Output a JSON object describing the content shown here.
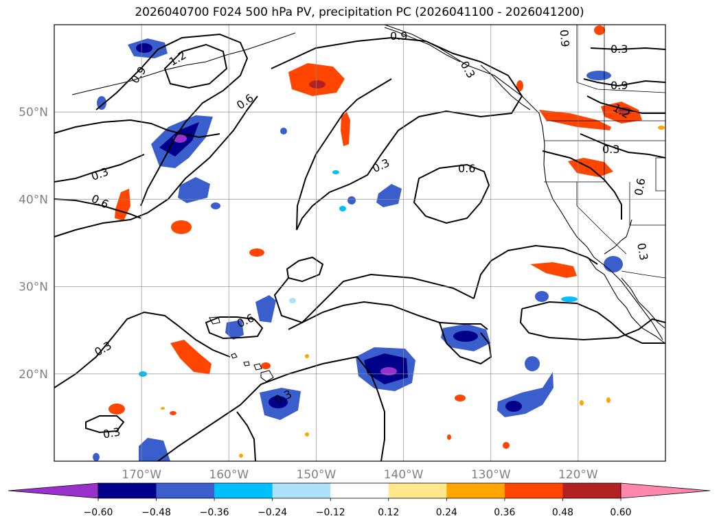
{
  "title": "2026040700 F024 500 hPa PV, precipitation PC (2026041100 - 2026041200)",
  "map": {
    "lon_range": [
      -180,
      -110
    ],
    "lat_range": [
      10,
      60
    ],
    "lat_ticks": [
      {
        "value": 50,
        "label": "50°N"
      },
      {
        "value": 40,
        "label": "40°N"
      },
      {
        "value": 30,
        "label": "30°N"
      },
      {
        "value": 20,
        "label": "20°N"
      }
    ],
    "lon_ticks": [
      {
        "value": -170,
        "label": "170°W"
      },
      {
        "value": -160,
        "label": "160°W"
      },
      {
        "value": -150,
        "label": "150°W"
      },
      {
        "value": -140,
        "label": "140°W"
      },
      {
        "value": -130,
        "label": "130°W"
      },
      {
        "value": -120,
        "label": "120°W"
      }
    ],
    "gridlines": true,
    "contour_labels": [
      "1.2",
      "0.9",
      "0.9",
      "0.6",
      "0.3",
      "0.6",
      "0.3",
      "0.6",
      "0.3",
      "0.3",
      "0.6",
      "0.3",
      "0.9",
      "0.3",
      "1.2",
      "0.3",
      "0.9",
      "0.3",
      "0.6",
      "0.3"
    ]
  },
  "colorbar": {
    "ticks": [
      "−0.60",
      "−0.48",
      "−0.36",
      "−0.24",
      "−0.12",
      "0.12",
      "0.24",
      "0.36",
      "0.48",
      "0.60"
    ],
    "colors": [
      "#9932CC",
      "#00008B",
      "#3A5FCD",
      "#00BFFF",
      "#ADE1FA",
      "#FFFFFF",
      "#FFE88C",
      "#FFA500",
      "#FF4500",
      "#B22222",
      "#FF88AA"
    ]
  },
  "colors": {
    "neg_strong": "#00008B",
    "neg_mid": "#3A5FCD",
    "neg_light": "#00BFFF",
    "neg_extreme": "#9932CC",
    "pos_mid": "#FF4500",
    "pos_light": "#FFA500",
    "pos_pale": "#FFE88C",
    "pos_strong": "#B22222"
  }
}
